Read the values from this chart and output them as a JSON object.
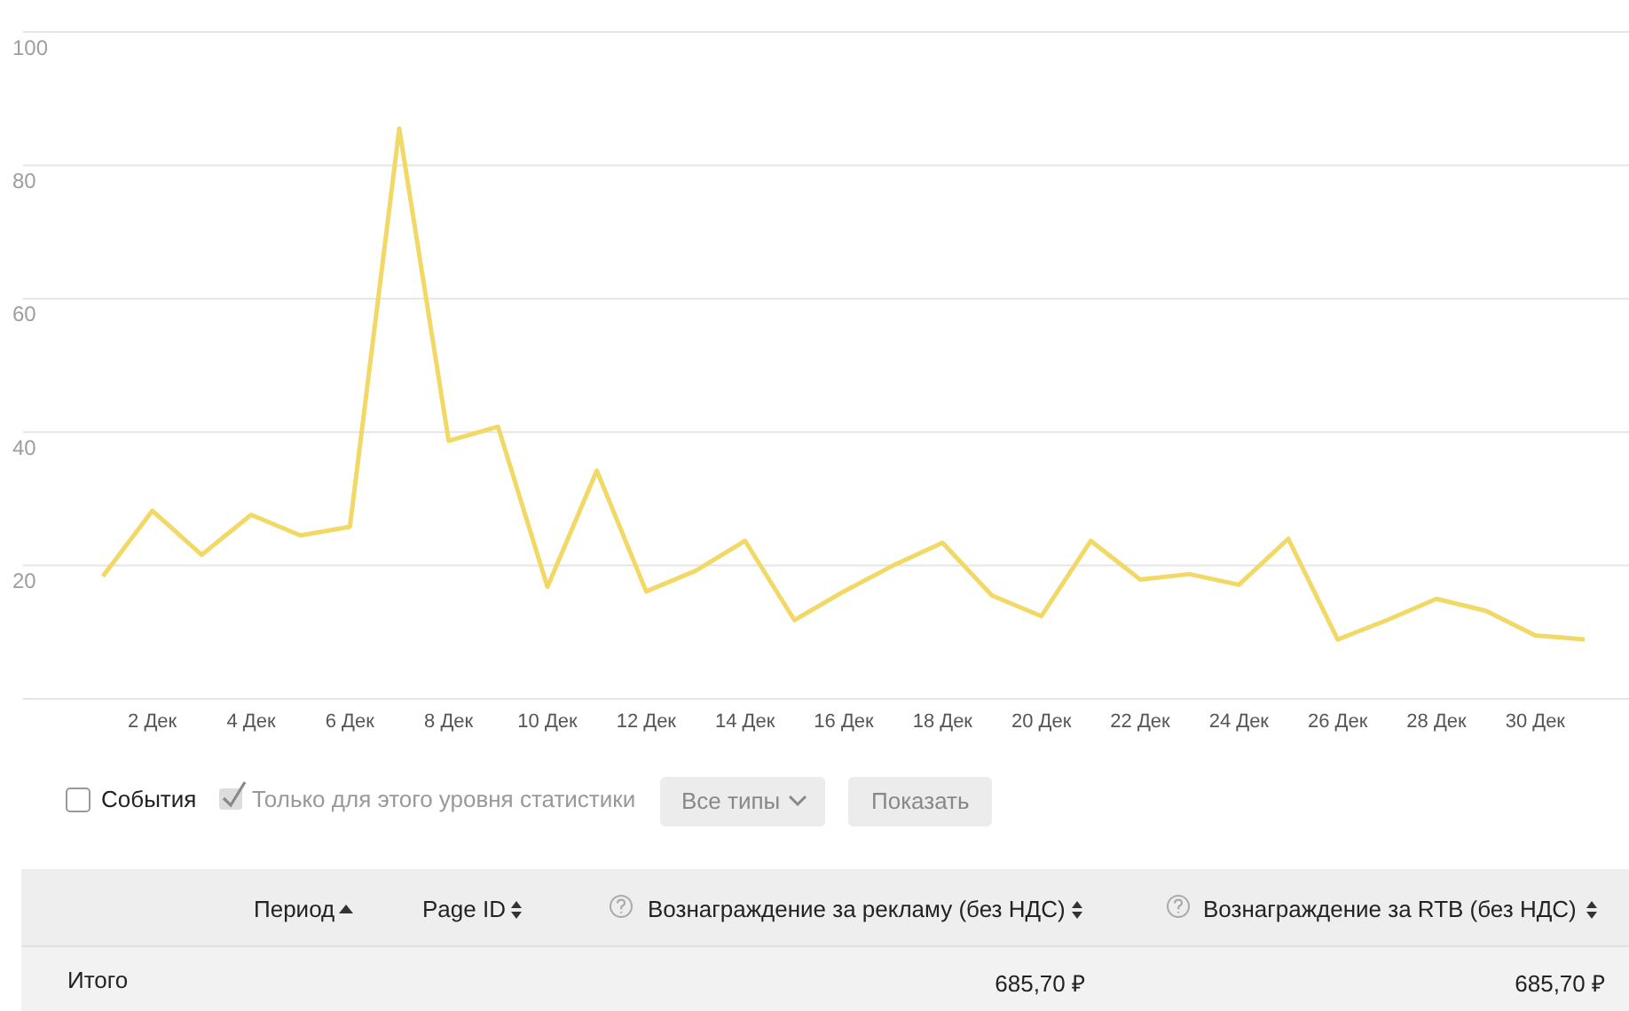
{
  "chart_data": {
    "type": "line",
    "categories": [
      null,
      "2 Дек",
      null,
      "4 Дек",
      null,
      "6 Дек",
      null,
      "8 Дек",
      null,
      "10 Дек",
      null,
      "12 Дек",
      null,
      "14 Дек",
      null,
      "16 Дек",
      null,
      "18 Дек",
      null,
      "20 Дек",
      null,
      "22 Дек",
      null,
      "24 Дек",
      null,
      "26 Дек",
      null,
      "28 Дек",
      null,
      "30 Дек",
      null
    ],
    "series": [
      {
        "color": "#f2d865",
        "values": [
          18.4,
          28.2,
          21.6,
          27.6,
          24.5,
          25.8,
          85.5,
          38.7,
          40.8,
          16.8,
          34.2,
          16.1,
          19.2,
          23.7,
          11.8,
          16.1,
          20,
          23.4,
          15.5,
          12.4,
          23.7,
          17.9,
          18.7,
          17.1,
          24,
          8.9,
          11.8,
          15,
          13.2,
          9.5,
          8.9
        ]
      }
    ],
    "ylim": [
      0,
      100
    ],
    "yticks": [
      {
        "value": 0,
        "label": null
      },
      20,
      40,
      60,
      80,
      100
    ],
    "grid": "y",
    "marker": "none",
    "line_style": "solid",
    "annotations": [
      "События",
      "Только для этого уровня статистики",
      "Все типы",
      "Показать",
      "Период",
      "Page ID",
      "Вознаграждение за рекламу (без НДС)",
      "Вознаграждение за RTB (без НДС)",
      "Итого",
      "685,70 ₽",
      "685,70 ₽"
    ]
  }
}
